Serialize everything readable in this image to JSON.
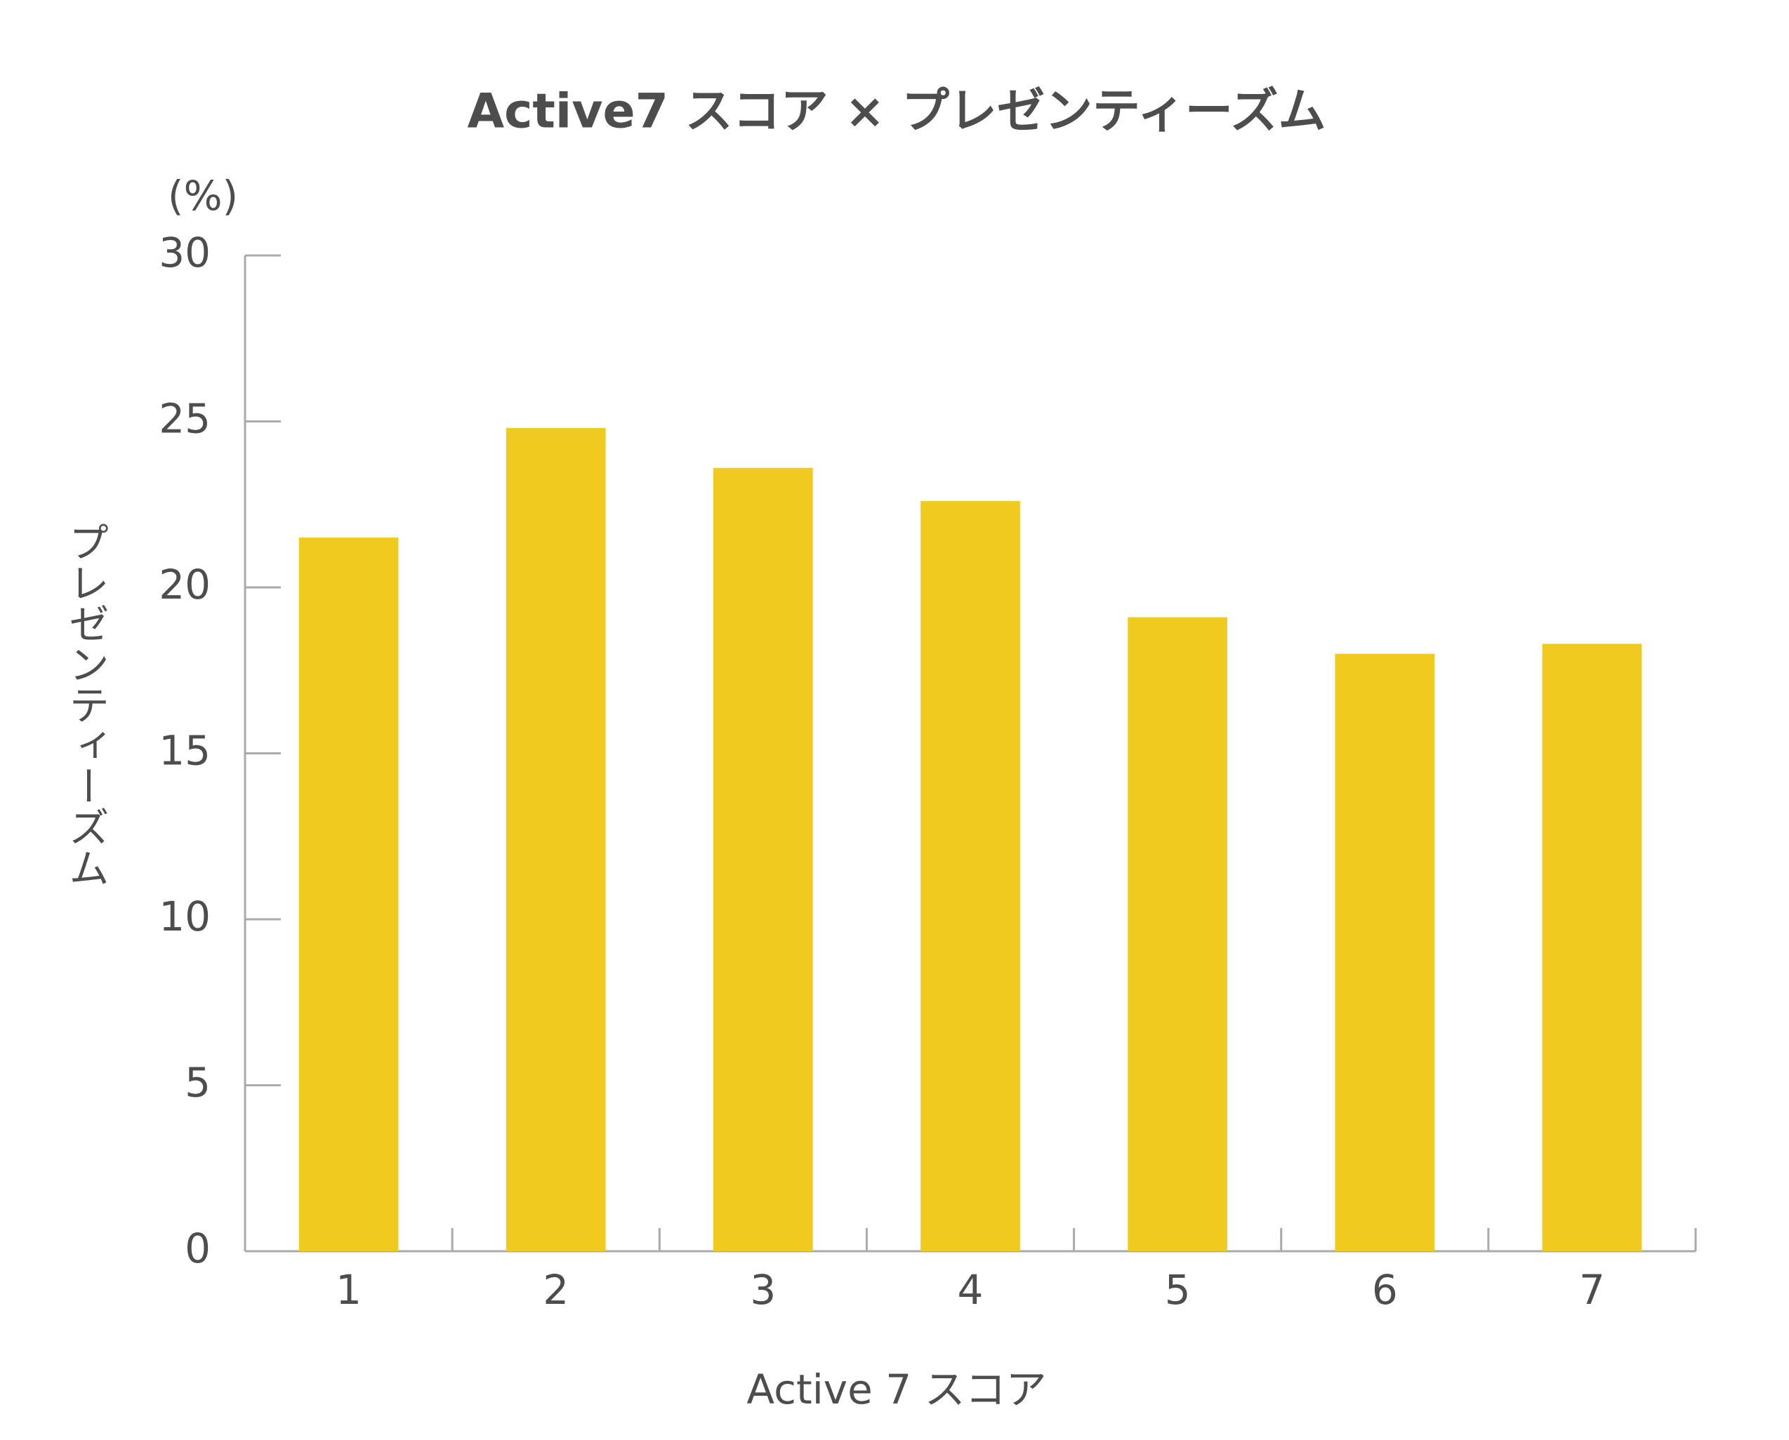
{
  "chart_data": {
    "type": "bar",
    "title": "Active7 スコア × プレゼンティーズム",
    "y_unit": "(%)",
    "x_label": "Active 7 スコア",
    "y_label": "プレゼンティーズム",
    "categories": [
      "1",
      "2",
      "3",
      "4",
      "5",
      "6",
      "7"
    ],
    "values": [
      21.5,
      24.8,
      23.6,
      22.6,
      19.1,
      18.0,
      18.3
    ],
    "color": "#f1ca20",
    "ylim": [
      0,
      30
    ],
    "yticks": [
      0,
      5,
      10,
      15,
      20,
      25,
      30
    ],
    "grid": false
  }
}
